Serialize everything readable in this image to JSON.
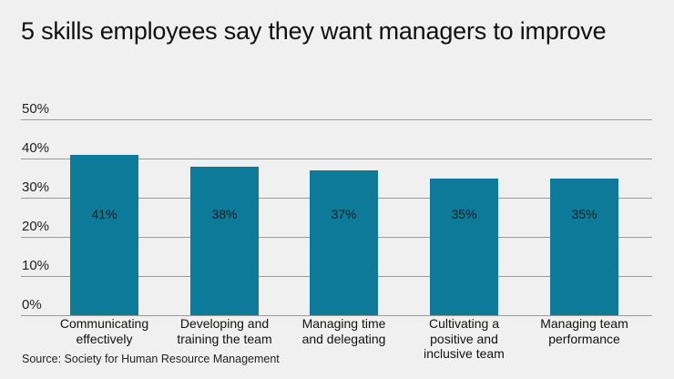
{
  "chart_data": {
    "type": "bar",
    "title": "5 skills employees say they want managers to improve",
    "categories": [
      "Communicating effectively",
      "Developing and training the team",
      "Managing time and delegating",
      "Cultivating a positive and inclusive team",
      "Managing team performance"
    ],
    "category_lines": [
      [
        "Communicating",
        "effectively"
      ],
      [
        "Developing and",
        "training the team"
      ],
      [
        "Managing time",
        "and delegating"
      ],
      [
        "Cultivating a",
        "positive and",
        "inclusive team"
      ],
      [
        "Managing team",
        "performance"
      ]
    ],
    "values": [
      41,
      38,
      37,
      35,
      35
    ],
    "value_labels": [
      "41%",
      "38%",
      "37%",
      "35%",
      "35%"
    ],
    "xlabel": "",
    "ylabel": "",
    "ylim": [
      0,
      50
    ],
    "yticks": [
      "0%",
      "10%",
      "20%",
      "30%",
      "40%",
      "50%"
    ],
    "grid": true,
    "legend": null,
    "bar_color": "#0e7a99",
    "source": "Source: Society for Human Resource Management"
  }
}
